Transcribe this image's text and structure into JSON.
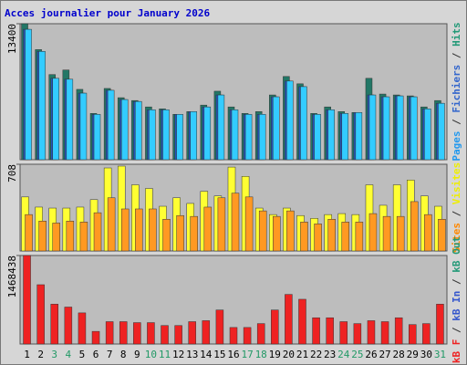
{
  "title": "Acces journalier pour January 2026",
  "days": [
    "1",
    "2",
    "3",
    "4",
    "5",
    "6",
    "7",
    "8",
    "9",
    "10",
    "11",
    "12",
    "13",
    "14",
    "15",
    "16",
    "17",
    "18",
    "19",
    "20",
    "21",
    "22",
    "23",
    "24",
    "25",
    "26",
    "27",
    "28",
    "29",
    "30",
    "31"
  ],
  "weekend_days": [
    3,
    4,
    10,
    11,
    17,
    18,
    24,
    25,
    31
  ],
  "weekday_color": "#000000",
  "weekend_color": "#229966",
  "legend_separator": " / ",
  "panels": [
    {
      "ymax": 13400,
      "legend": [
        {
          "name": "Pages",
          "color": "#2299ee"
        },
        {
          "name": "Fichiers",
          "color": "#3366cc"
        },
        {
          "name": "Hits",
          "color": "#229977"
        }
      ],
      "series": [
        {
          "color": "#227766",
          "values": [
            13400,
            10850,
            8390,
            8840,
            6930,
            4560,
            7020,
            6110,
            5830,
            5200,
            5010,
            4470,
            4740,
            5380,
            6750,
            5200,
            4560,
            4740,
            6380,
            8200,
            7480,
            4560,
            5200,
            4740,
            4650,
            8020,
            6470,
            6380,
            6290,
            5200,
            5830
          ]
        },
        {
          "color": "#2255bb",
          "values": [
            12850,
            10670,
            8020,
            7930,
            6560,
            4470,
            6840,
            5930,
            5740,
            4920,
            4920,
            4470,
            4740,
            5200,
            6380,
            4920,
            4470,
            4470,
            6200,
            7750,
            7200,
            4470,
            4920,
            4560,
            4650,
            6380,
            6200,
            6290,
            6200,
            5010,
            5560
          ]
        },
        {
          "color": "#33ccff",
          "values": [
            12850,
            10670,
            8020,
            7930,
            6560,
            4470,
            6840,
            5930,
            5740,
            4920,
            4920,
            4470,
            4740,
            5200,
            6380,
            4920,
            4470,
            4470,
            6200,
            7750,
            7200,
            4470,
            4920,
            4560,
            4650,
            6380,
            6200,
            6290,
            6200,
            5010,
            5560
          ]
        }
      ]
    },
    {
      "ymax": 708,
      "legend": [
        {
          "name": "Sites",
          "color": "#ff8800"
        },
        {
          "name": "Visites",
          "color": "#eeee00"
        }
      ],
      "series": [
        {
          "color": "#ffff33",
          "values": [
            441,
            358,
            350,
            350,
            358,
            419,
            678,
            693,
            540,
            510,
            365,
            434,
            388,
            487,
            449,
            685,
            609,
            350,
            297,
            350,
            289,
            266,
            297,
            305,
            297,
            540,
            373,
            540,
            579,
            449,
            365
          ]
        },
        {
          "color": "#ff9922",
          "values": [
            297,
            244,
            228,
            244,
            236,
            312,
            434,
            343,
            343,
            343,
            259,
            289,
            282,
            358,
            434,
            472,
            441,
            327,
            282,
            327,
            236,
            221,
            259,
            236,
            236,
            305,
            282,
            282,
            403,
            297,
            259
          ]
        }
      ]
    },
    {
      "ymax": 1468438,
      "legend": [
        {
          "name": "kB F",
          "color": "#ee2222"
        },
        {
          "name": "kB In",
          "color": "#3355cc"
        },
        {
          "name": "kB Out",
          "color": "#229977"
        }
      ],
      "series": [
        {
          "color": "#ee2222",
          "values": [
            1468438,
            984000,
            661600,
            613200,
            516400,
            209800,
            371100,
            371100,
            355000,
            355000,
            306600,
            306600,
            371100,
            387300,
            564800,
            274300,
            274300,
            338900,
            564800,
            823000,
            742300,
            435700,
            435700,
            371100,
            338900,
            387300,
            371100,
            435700,
            322700,
            338900,
            661600
          ]
        }
      ]
    }
  ]
}
